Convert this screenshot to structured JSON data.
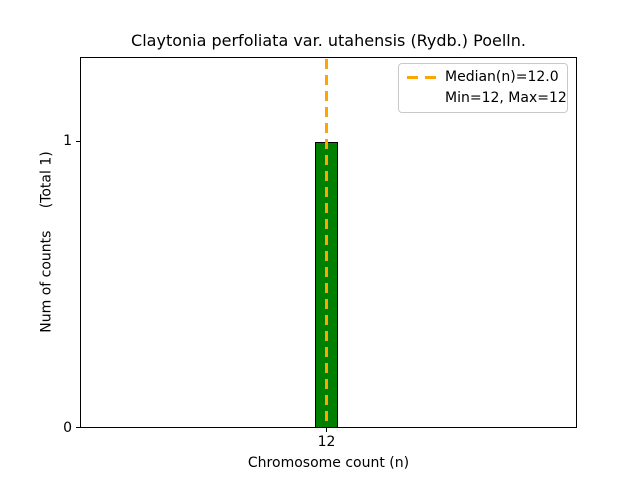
{
  "chart_data": {
    "type": "bar",
    "title": "Claytonia perfoliata var. utahensis (Rydb.) Poelln.",
    "xlabel": "Chromosome count (n)",
    "ylabel": "Num of counts     (Total 1)",
    "categories": [
      12
    ],
    "values": [
      1
    ],
    "total_counts": 1,
    "median_n": 12.0,
    "min_n": 12,
    "max_n": 12,
    "xticks": [
      "12"
    ],
    "yticks": [
      "0",
      "1"
    ],
    "ylim": [
      0,
      1.3
    ],
    "grid": false,
    "bar_color": "#008000",
    "bar_edge_color": "#000000",
    "median_line_color": "#FFA500",
    "median_line_style": "dashed",
    "legend": {
      "position": "upper right",
      "entries": [
        {
          "label": "Median(n)=12.0",
          "handle": "dashed-line",
          "handle_color": "#FFA500"
        },
        {
          "label": "Min=12, Max=12",
          "handle": "none"
        }
      ]
    }
  }
}
